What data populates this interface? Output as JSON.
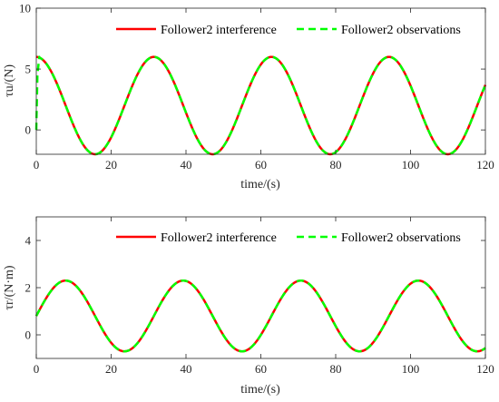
{
  "colors": {
    "interference": "#ff0000",
    "observations": "#00ff00",
    "axis": "#262626",
    "legend_border": "#ffffff"
  },
  "chart_data": [
    {
      "type": "line",
      "title": "",
      "xlabel": "time/(s)",
      "ylabel": "τu/(N)",
      "xlim": [
        0,
        120
      ],
      "ylim": [
        -2,
        10
      ],
      "xticks": [
        0,
        20,
        40,
        60,
        80,
        100,
        120
      ],
      "yticks": [
        0,
        5,
        10
      ],
      "grid": false,
      "legend_position": "top-right",
      "signal": {
        "form": "offset + amplitude*cos(omega*t)",
        "offset": 2,
        "amplitude": 4,
        "omega": 0.2,
        "t_step": 0.5
      },
      "series": [
        {
          "name": "Follower2 interference",
          "style": "solid",
          "x": [
            0,
            8,
            15.7,
            23.6,
            31.4,
            39.3,
            47.1,
            55,
            62.8,
            70.7,
            78.5,
            86.4,
            94.2,
            102.1,
            110,
            117.8,
            120
          ],
          "y": [
            6,
            2,
            -2,
            2,
            6,
            2,
            -2,
            2,
            6,
            2,
            -2,
            2,
            6,
            2,
            -2,
            2,
            3.8
          ]
        },
        {
          "name": "Follower2 observations",
          "style": "dashed",
          "x": [
            0,
            0.3,
            0.8,
            8,
            15.7,
            23.6,
            31.4,
            39.3,
            47.1,
            55,
            62.8,
            70.7,
            78.5,
            86.4,
            94.2,
            102.1,
            110,
            117.8,
            120
          ],
          "y": [
            0,
            4.5,
            6,
            2,
            -2,
            2,
            6,
            2,
            -2,
            2,
            6,
            2,
            -2,
            2,
            6,
            2,
            -2,
            2,
            3.8
          ],
          "transient": [
            [
              0,
              0
            ],
            [
              0.3,
              4.5
            ],
            [
              0.8,
              6
            ]
          ]
        }
      ]
    },
    {
      "type": "line",
      "title": "",
      "xlabel": "time/(s)",
      "ylabel": "τr/(N·m)",
      "xlim": [
        0,
        120
      ],
      "ylim": [
        -1,
        5
      ],
      "xticks": [
        0,
        20,
        40,
        60,
        80,
        100,
        120
      ],
      "yticks": [
        0,
        2,
        4
      ],
      "grid": false,
      "legend_position": "top-right",
      "signal": {
        "form": "offset + amplitude*sin(omega*t)",
        "offset": 0.8,
        "amplitude": 1.5,
        "omega": 0.2,
        "t_step": 0.5
      },
      "series": [
        {
          "name": "Follower2 interference",
          "style": "solid",
          "x": [
            0,
            7.9,
            15.7,
            23.6,
            31.4,
            39.3,
            47.1,
            55,
            62.8,
            70.7,
            78.5,
            86.4,
            94.2,
            102.1,
            110,
            117.8,
            120
          ],
          "y": [
            0.8,
            2.3,
            0.8,
            -0.7,
            0.8,
            2.3,
            0.8,
            -0.7,
            0.8,
            2.3,
            0.8,
            -0.7,
            0.8,
            2.3,
            0.8,
            -0.7,
            -0.55
          ]
        },
        {
          "name": "Follower2 observations",
          "style": "dashed",
          "x": [
            0,
            7.9,
            15.7,
            23.6,
            31.4,
            39.3,
            47.1,
            55,
            62.8,
            70.7,
            78.5,
            86.4,
            94.2,
            102.1,
            110,
            117.8,
            120
          ],
          "y": [
            0.8,
            2.3,
            0.8,
            -0.7,
            0.8,
            2.3,
            0.8,
            -0.7,
            0.8,
            2.3,
            0.8,
            -0.7,
            0.8,
            2.3,
            0.8,
            -0.7,
            -0.55
          ]
        }
      ]
    }
  ]
}
